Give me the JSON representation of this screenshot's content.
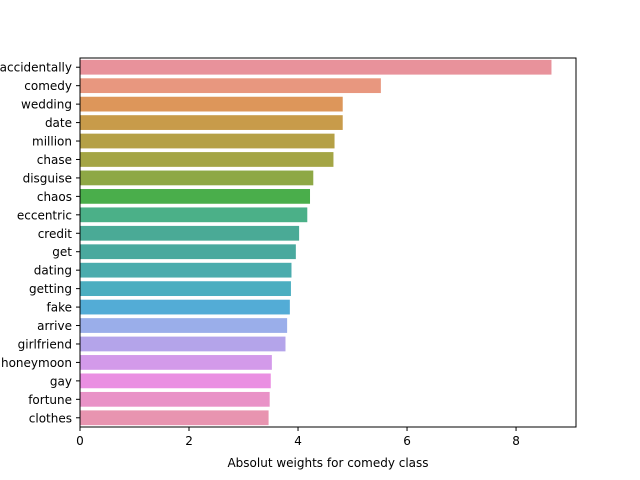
{
  "chart_data": {
    "type": "bar",
    "orientation": "horizontal",
    "title": "",
    "xlabel": "Absolut weights for comedy class",
    "ylabel": "",
    "xlim": [
      0,
      9.1
    ],
    "x_ticks": [
      "0",
      "2",
      "4",
      "6",
      "8"
    ],
    "grid": false,
    "categories": [
      "accidentally",
      "comedy",
      "wedding",
      "date",
      "million",
      "chase",
      "disguise",
      "chaos",
      "eccentric",
      "credit",
      "get",
      "dating",
      "getting",
      "fake",
      "arrive",
      "girlfriend",
      "honeymoon",
      "gay",
      "fortune",
      "clothes"
    ],
    "values": [
      8.65,
      5.52,
      4.82,
      4.82,
      4.67,
      4.65,
      4.28,
      4.22,
      4.17,
      4.02,
      3.96,
      3.88,
      3.87,
      3.85,
      3.8,
      3.77,
      3.52,
      3.5,
      3.48,
      3.46
    ],
    "colors": [
      "#e8929b",
      "#e8977f",
      "#dd965a",
      "#c89b4a",
      "#b5a046",
      "#a4a545",
      "#8ea845",
      "#4aae4b",
      "#4bb088",
      "#4aaa96",
      "#49a99e",
      "#4aacad",
      "#4baec0",
      "#53acd6",
      "#9aaeea",
      "#b4a4ea",
      "#d39aea",
      "#ea8fe2",
      "#e992c7",
      "#e894b0"
    ]
  }
}
